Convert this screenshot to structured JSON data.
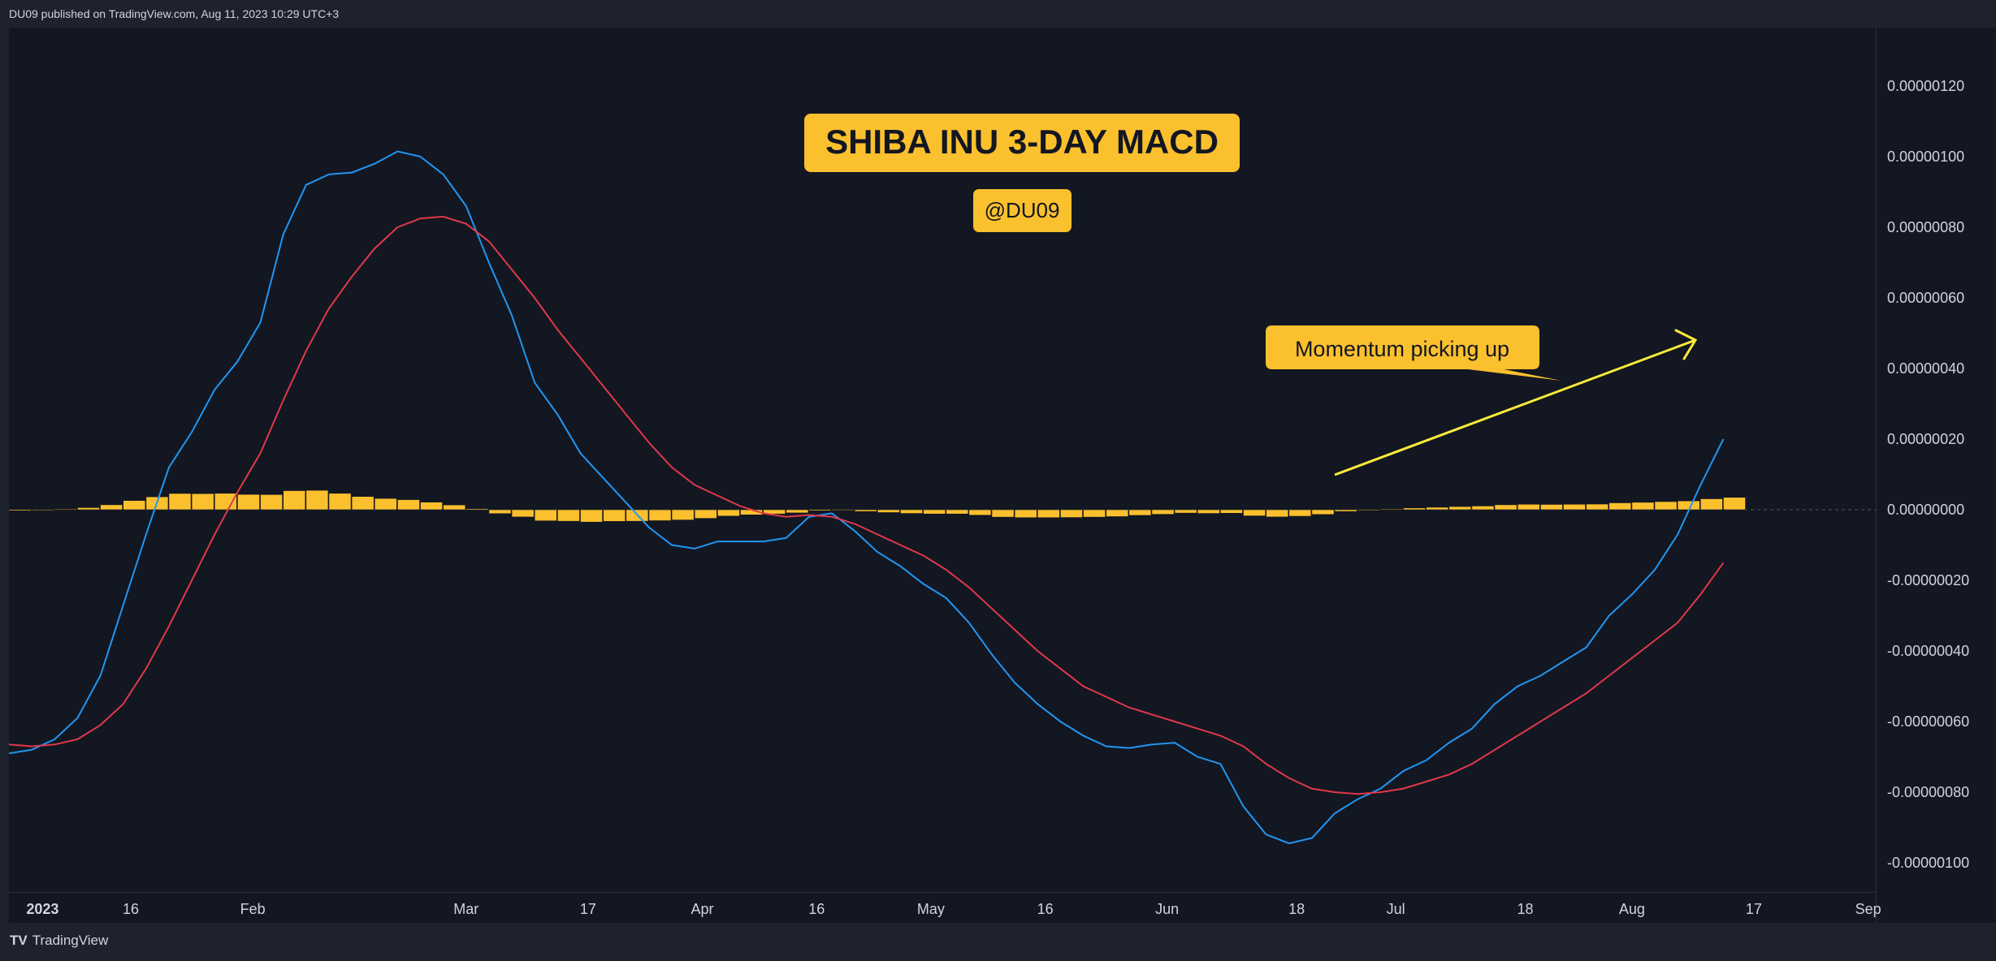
{
  "header": {
    "published": "DU09 published on TradingView.com, Aug 11, 2023 10:29 UTC+3"
  },
  "footer": {
    "brand_logo": "TV",
    "brand_name": "TradingView"
  },
  "colors": {
    "background": "#131722",
    "frame": "#1e222d",
    "histogram": "#fbc02d",
    "macd_line": "#2196f3",
    "signal_line": "#e0384a",
    "axis_text": "#d1d4dc",
    "annotation_arrow": "#ffeb3b"
  },
  "chart_data": {
    "type": "bar",
    "title": "SHIBA INU 3-DAY MACD",
    "subtitle": "@DU09",
    "annotation": "Momentum picking up",
    "ylim": [
      -1.1e-06,
      1.4e-06
    ],
    "y_ticks": [
      "0.00000120",
      "0.00000100",
      "0.00000080",
      "0.00000060",
      "0.00000040",
      "0.00000020",
      "0.00000000",
      "-0.00000020",
      "-0.00000040",
      "-0.00000060",
      "-0.00000080",
      "-0.00000100"
    ],
    "y_tick_values": [
      1.2e-06,
      1e-06,
      8e-07,
      6e-07,
      4e-07,
      2e-07,
      0,
      -2e-07,
      -4e-07,
      -6e-07,
      -8e-07,
      -1e-06
    ],
    "x_ticks": [
      "2023",
      "16",
      "Feb",
      "Mar",
      "17",
      "Apr",
      "16",
      "May",
      "16",
      "Jun",
      "18",
      "Jul",
      "18",
      "Aug",
      "17",
      "Sep"
    ],
    "x_tick_dates": [
      "2023-01-01",
      "2023-01-16",
      "2023-02-01",
      "2023-03-01",
      "2023-03-17",
      "2023-04-01",
      "2023-04-16",
      "2023-05-01",
      "2023-05-16",
      "2023-06-01",
      "2023-06-18",
      "2023-07-01",
      "2023-07-18",
      "2023-08-01",
      "2023-08-17",
      "2023-09-01"
    ],
    "x_range": [
      "2022-12-31",
      "2023-09-02"
    ],
    "start_date": "2022-12-31",
    "bar_interval_days": 3,
    "histogram": [
      -3e-09,
      -2e-09,
      2e-09,
      6e-09,
      1.4e-08,
      2.6e-08,
      3.65e-08,
      4.6e-08,
      4.55e-08,
      4.65e-08,
      4.35e-08,
      4.3e-08,
      5.4e-08,
      5.5e-08,
      4.65e-08,
      3.75e-08,
      3.2e-08,
      2.85e-08,
      2.15e-08,
      1.35e-08,
      3e-09,
      -1.1e-08,
      -2.05e-08,
      -3.15e-08,
      -3.25e-08,
      -3.5e-08,
      -3.3e-08,
      -3.25e-08,
      -3.1e-08,
      -2.9e-08,
      -2.45e-08,
      -1.8e-08,
      -1.45e-08,
      -1.2e-08,
      -9e-09,
      -3e-09,
      1e-09,
      -5e-09,
      -8e-09,
      -1.05e-08,
      -1.2e-08,
      -1.2e-08,
      -1.55e-08,
      -2.1e-08,
      -2.25e-08,
      -2.25e-08,
      -2.2e-08,
      -2.1e-08,
      -1.95e-08,
      -1.6e-08,
      -1.3e-08,
      -9.5e-09,
      -1.05e-08,
      -1e-08,
      -1.75e-08,
      -2.05e-08,
      -1.85e-08,
      -1.35e-08,
      -5e-09,
      -5e-10,
      1.5e-09,
      5e-09,
      7e-09,
      9e-09,
      1.05e-08,
      1.4e-08,
      1.55e-08,
      1.5e-08,
      1.55e-08,
      1.6e-08,
      1.95e-08,
      2.1e-08,
      2.3e-08,
      2.5e-08,
      3.1e-08,
      3.5e-08
    ],
    "series": [
      {
        "name": "MACD",
        "points": [
          [
            "2022-12-31",
            -6.9e-07
          ],
          [
            "2023-01-03",
            -6.8e-07
          ],
          [
            "2023-01-06",
            -6.5e-07
          ],
          [
            "2023-01-09",
            -5.9e-07
          ],
          [
            "2023-01-12",
            -4.7e-07
          ],
          [
            "2023-01-15",
            -2.7e-07
          ],
          [
            "2023-01-18",
            -7e-08
          ],
          [
            "2023-01-21",
            1.2e-07
          ],
          [
            "2023-01-24",
            2.2e-07
          ],
          [
            "2023-01-27",
            3.4e-07
          ],
          [
            "2023-01-30",
            4.2e-07
          ],
          [
            "2023-02-02",
            5.3e-07
          ],
          [
            "2023-02-05",
            7.8e-07
          ],
          [
            "2023-02-08",
            9.2e-07
          ],
          [
            "2023-02-11",
            9.5e-07
          ],
          [
            "2023-02-14",
            9.55e-07
          ],
          [
            "2023-02-17",
            9.8e-07
          ],
          [
            "2023-02-20",
            1.015e-06
          ],
          [
            "2023-02-23",
            1e-06
          ],
          [
            "2023-02-26",
            9.5e-07
          ],
          [
            "2023-03-01",
            8.6e-07
          ],
          [
            "2023-03-04",
            7e-07
          ],
          [
            "2023-03-07",
            5.5e-07
          ],
          [
            "2023-03-10",
            3.6e-07
          ],
          [
            "2023-03-13",
            2.7e-07
          ],
          [
            "2023-03-16",
            1.6e-07
          ],
          [
            "2023-03-19",
            9e-08
          ],
          [
            "2023-03-22",
            2e-08
          ],
          [
            "2023-03-25",
            -5e-08
          ],
          [
            "2023-03-28",
            -1e-07
          ],
          [
            "2023-03-31",
            -1.1e-07
          ],
          [
            "2023-04-03",
            -9e-08
          ],
          [
            "2023-04-06",
            -9e-08
          ],
          [
            "2023-04-09",
            -9e-08
          ],
          [
            "2023-04-12",
            -8e-08
          ],
          [
            "2023-04-15",
            -2e-08
          ],
          [
            "2023-04-18",
            -1e-08
          ],
          [
            "2023-04-21",
            -6e-08
          ],
          [
            "2023-04-24",
            -1.2e-07
          ],
          [
            "2023-04-27",
            -1.6e-07
          ],
          [
            "2023-04-30",
            -2.1e-07
          ],
          [
            "2023-05-03",
            -2.5e-07
          ],
          [
            "2023-05-06",
            -3.2e-07
          ],
          [
            "2023-05-09",
            -4.1e-07
          ],
          [
            "2023-05-12",
            -4.9e-07
          ],
          [
            "2023-05-15",
            -5.5e-07
          ],
          [
            "2023-05-18",
            -6e-07
          ],
          [
            "2023-05-21",
            -6.4e-07
          ],
          [
            "2023-05-24",
            -6.7e-07
          ],
          [
            "2023-05-27",
            -6.75e-07
          ],
          [
            "2023-05-30",
            -6.65e-07
          ],
          [
            "2023-06-02",
            -6.6e-07
          ],
          [
            "2023-06-05",
            -7e-07
          ],
          [
            "2023-06-08",
            -7.2e-07
          ],
          [
            "2023-06-11",
            -8.4e-07
          ],
          [
            "2023-06-14",
            -9.2e-07
          ],
          [
            "2023-06-17",
            -9.45e-07
          ],
          [
            "2023-06-20",
            -9.3e-07
          ],
          [
            "2023-06-23",
            -8.6e-07
          ],
          [
            "2023-06-26",
            -8.2e-07
          ],
          [
            "2023-06-29",
            -7.9e-07
          ],
          [
            "2023-07-02",
            -7.4e-07
          ],
          [
            "2023-07-05",
            -7.1e-07
          ],
          [
            "2023-07-08",
            -6.6e-07
          ],
          [
            "2023-07-11",
            -6.2e-07
          ],
          [
            "2023-07-14",
            -5.5e-07
          ],
          [
            "2023-07-17",
            -5e-07
          ],
          [
            "2023-07-20",
            -4.7e-07
          ],
          [
            "2023-07-23",
            -4.3e-07
          ],
          [
            "2023-07-26",
            -3.9e-07
          ],
          [
            "2023-07-29",
            -3e-07
          ],
          [
            "2023-08-01",
            -2.4e-07
          ],
          [
            "2023-08-04",
            -1.7e-07
          ],
          [
            "2023-08-07",
            -7e-08
          ],
          [
            "2023-08-10",
            7e-08
          ],
          [
            "2023-08-13",
            2e-07
          ]
        ]
      },
      {
        "name": "Signal",
        "points": [
          [
            "2022-12-31",
            -6.65e-07
          ],
          [
            "2023-01-03",
            -6.7e-07
          ],
          [
            "2023-01-06",
            -6.65e-07
          ],
          [
            "2023-01-09",
            -6.5e-07
          ],
          [
            "2023-01-12",
            -6.1e-07
          ],
          [
            "2023-01-15",
            -5.5e-07
          ],
          [
            "2023-01-18",
            -4.5e-07
          ],
          [
            "2023-01-21",
            -3.3e-07
          ],
          [
            "2023-01-24",
            -2e-07
          ],
          [
            "2023-01-27",
            -7e-08
          ],
          [
            "2023-01-30",
            5e-08
          ],
          [
            "2023-02-02",
            1.6e-07
          ],
          [
            "2023-02-05",
            3.1e-07
          ],
          [
            "2023-02-08",
            4.5e-07
          ],
          [
            "2023-02-11",
            5.7e-07
          ],
          [
            "2023-02-14",
            6.6e-07
          ],
          [
            "2023-02-17",
            7.4e-07
          ],
          [
            "2023-02-20",
            8e-07
          ],
          [
            "2023-02-23",
            8.25e-07
          ],
          [
            "2023-02-26",
            8.3e-07
          ],
          [
            "2023-03-01",
            8.1e-07
          ],
          [
            "2023-03-04",
            7.6e-07
          ],
          [
            "2023-03-07",
            6.8e-07
          ],
          [
            "2023-03-10",
            6e-07
          ],
          [
            "2023-03-13",
            5.1e-07
          ],
          [
            "2023-03-16",
            4.3e-07
          ],
          [
            "2023-03-19",
            3.5e-07
          ],
          [
            "2023-03-22",
            2.7e-07
          ],
          [
            "2023-03-25",
            1.9e-07
          ],
          [
            "2023-03-28",
            1.2e-07
          ],
          [
            "2023-03-31",
            7e-08
          ],
          [
            "2023-04-03",
            4e-08
          ],
          [
            "2023-04-06",
            1e-08
          ],
          [
            "2023-04-09",
            -1e-08
          ],
          [
            "2023-04-12",
            -2e-08
          ],
          [
            "2023-04-15",
            -1.5e-08
          ],
          [
            "2023-04-18",
            -2e-08
          ],
          [
            "2023-04-21",
            -4e-08
          ],
          [
            "2023-04-24",
            -7e-08
          ],
          [
            "2023-04-27",
            -1e-07
          ],
          [
            "2023-04-30",
            -1.3e-07
          ],
          [
            "2023-05-03",
            -1.7e-07
          ],
          [
            "2023-05-06",
            -2.2e-07
          ],
          [
            "2023-05-09",
            -2.8e-07
          ],
          [
            "2023-05-12",
            -3.4e-07
          ],
          [
            "2023-05-15",
            -4e-07
          ],
          [
            "2023-05-18",
            -4.5e-07
          ],
          [
            "2023-05-21",
            -5e-07
          ],
          [
            "2023-05-24",
            -5.3e-07
          ],
          [
            "2023-05-27",
            -5.6e-07
          ],
          [
            "2023-05-30",
            -5.8e-07
          ],
          [
            "2023-06-02",
            -6e-07
          ],
          [
            "2023-06-05",
            -6.2e-07
          ],
          [
            "2023-06-08",
            -6.4e-07
          ],
          [
            "2023-06-11",
            -6.7e-07
          ],
          [
            "2023-06-14",
            -7.2e-07
          ],
          [
            "2023-06-17",
            -7.6e-07
          ],
          [
            "2023-06-20",
            -7.9e-07
          ],
          [
            "2023-06-23",
            -8e-07
          ],
          [
            "2023-06-26",
            -8.05e-07
          ],
          [
            "2023-06-29",
            -8e-07
          ],
          [
            "2023-07-02",
            -7.9e-07
          ],
          [
            "2023-07-05",
            -7.7e-07
          ],
          [
            "2023-07-08",
            -7.5e-07
          ],
          [
            "2023-07-11",
            -7.2e-07
          ],
          [
            "2023-07-14",
            -6.8e-07
          ],
          [
            "2023-07-17",
            -6.4e-07
          ],
          [
            "2023-07-20",
            -6e-07
          ],
          [
            "2023-07-23",
            -5.6e-07
          ],
          [
            "2023-07-26",
            -5.2e-07
          ],
          [
            "2023-07-29",
            -4.7e-07
          ],
          [
            "2023-08-01",
            -4.2e-07
          ],
          [
            "2023-08-04",
            -3.7e-07
          ],
          [
            "2023-08-07",
            -3.2e-07
          ],
          [
            "2023-08-10",
            -2.4e-07
          ],
          [
            "2023-08-13",
            -1.5e-07
          ]
        ]
      }
    ]
  }
}
